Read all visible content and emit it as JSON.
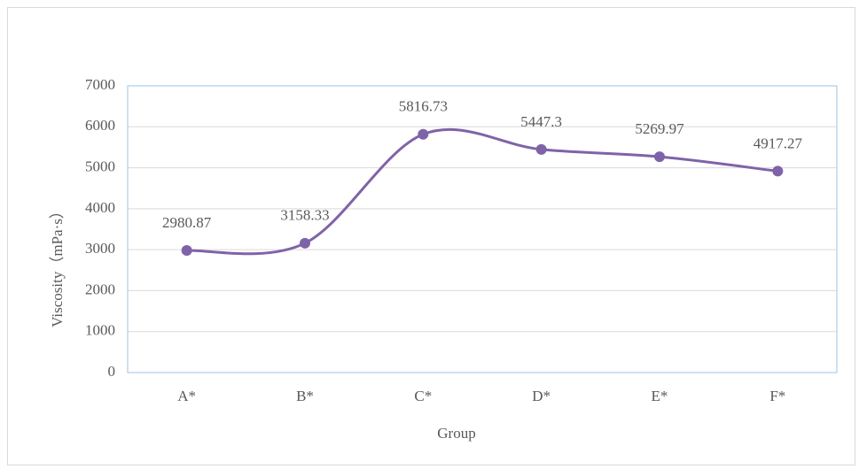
{
  "chart_data": {
    "type": "line",
    "x_label": "Group",
    "y_label": "Viscosity（mPa·s）",
    "categories": [
      "A*",
      "B*",
      "C*",
      "D*",
      "E*",
      "F*"
    ],
    "series": [
      {
        "name": "Viscosity",
        "color": "#7f63a8",
        "values": [
          2980.87,
          3158.33,
          5816.73,
          5447.3,
          5269.97,
          4917.27
        ]
      }
    ],
    "ylim": [
      0,
      7000
    ],
    "yticks": [
      0,
      1000,
      2000,
      3000,
      4000,
      5000,
      6000,
      7000
    ],
    "grid": true,
    "smooth": true
  }
}
